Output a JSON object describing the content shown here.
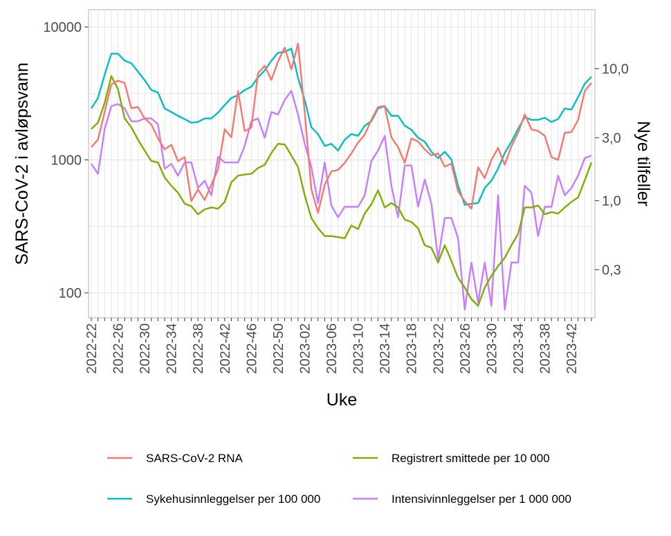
{
  "chart_data": {
    "type": "line",
    "xlabel": "Uke",
    "ylabel_left": "SARS-CoV-2 i avløpsvann",
    "ylabel_right": "Nye tilfeller",
    "y_scale": "log",
    "ylim_left": [
      65,
      13500
    ],
    "ylim_right": [
      0.13,
      28
    ],
    "yticks_left": [
      {
        "v": 100,
        "label": "100"
      },
      {
        "v": 1000,
        "label": "1000"
      },
      {
        "v": 10000,
        "label": "10000"
      }
    ],
    "yticks_right": [
      {
        "v": 0.3,
        "label": "0,3"
      },
      {
        "v": 1,
        "label": "1,0"
      },
      {
        "v": 3,
        "label": "3,0"
      },
      {
        "v": 10,
        "label": "10,0"
      }
    ],
    "x_tick_labels": [
      "2022-22",
      "2022-26",
      "2022-30",
      "2022-34",
      "2022-38",
      "2022-42",
      "2022-46",
      "2022-50",
      "2023-02",
      "2023-06",
      "2023-10",
      "2023-14",
      "2023-18",
      "2023-22",
      "2023-26",
      "2023-30",
      "2023-34",
      "2023-38",
      "2023-42"
    ],
    "n_weeks": 76,
    "grid": true,
    "legend_position": "bottom",
    "series": [
      {
        "name": "SARS-CoV-2 RNA",
        "axis": "left",
        "color": "#F8766D",
        "values": [
          1250,
          1420,
          2300,
          3700,
          3950,
          3800,
          2450,
          2500,
          2050,
          1850,
          1450,
          1200,
          1300,
          980,
          1050,
          490,
          600,
          500,
          650,
          850,
          1700,
          1480,
          3300,
          1650,
          1750,
          4500,
          5100,
          4000,
          5500,
          7000,
          4800,
          7500,
          2300,
          600,
          400,
          650,
          820,
          840,
          950,
          1120,
          1350,
          1550,
          2000,
          2500,
          2550,
          1480,
          1250,
          950,
          1450,
          1380,
          1200,
          1080,
          1120,
          890,
          940,
          580,
          490,
          430,
          880,
          730,
          1000,
          1230,
          920,
          1270,
          1600,
          2200,
          1700,
          1650,
          1520,
          1050,
          1000,
          1600,
          1620,
          2000,
          3300,
          3800
        ]
      },
      {
        "name": "Sykehusinnleggelser per 100 000",
        "axis": "right",
        "color": "#00BFC4",
        "values": [
          5.0,
          6.0,
          9.0,
          13.0,
          13.0,
          11.5,
          11.0,
          9.5,
          8.2,
          6.9,
          6.6,
          5.0,
          4.7,
          4.4,
          4.15,
          3.9,
          3.95,
          4.2,
          4.2,
          4.65,
          5.3,
          6.0,
          6.3,
          6.9,
          7.3,
          8.6,
          9.7,
          11.5,
          13.2,
          13.4,
          14.2,
          8.5,
          5.8,
          3.6,
          3.2,
          2.6,
          2.7,
          2.4,
          2.9,
          3.2,
          3.1,
          3.7,
          4.0,
          5.0,
          5.2,
          4.4,
          4.4,
          3.7,
          3.45,
          3.0,
          2.8,
          2.35,
          2.1,
          2.35,
          2.05,
          1.3,
          0.93,
          0.95,
          0.96,
          1.25,
          1.42,
          1.75,
          2.3,
          2.8,
          3.5,
          4.3,
          4.1,
          4.1,
          4.25,
          3.95,
          4.15,
          5.0,
          4.9,
          6.1,
          7.7,
          8.7
        ]
      },
      {
        "name": "Registrert smittede per 10 000",
        "axis": "right",
        "color": "#7CAE00",
        "values": [
          3.5,
          3.9,
          5.5,
          8.8,
          7.0,
          4.2,
          3.6,
          2.9,
          2.4,
          2.0,
          1.95,
          1.5,
          1.3,
          1.15,
          0.95,
          0.91,
          0.79,
          0.86,
          0.89,
          0.87,
          0.98,
          1.38,
          1.55,
          1.58,
          1.6,
          1.77,
          1.87,
          2.3,
          2.7,
          2.67,
          2.2,
          1.8,
          1.1,
          0.74,
          0.62,
          0.54,
          0.54,
          0.53,
          0.52,
          0.65,
          0.61,
          0.8,
          0.94,
          1.2,
          0.89,
          0.96,
          0.89,
          0.72,
          0.69,
          0.62,
          0.46,
          0.44,
          0.34,
          0.46,
          0.35,
          0.26,
          0.22,
          0.18,
          0.16,
          0.22,
          0.27,
          0.32,
          0.37,
          0.46,
          0.56,
          0.89,
          0.89,
          0.92,
          0.79,
          0.82,
          0.8,
          0.89,
          0.98,
          1.06,
          1.43,
          1.95
        ]
      },
      {
        "name": "Intensivinnleggelser per 1 000 000",
        "axis": "right",
        "color": "#C77CFF",
        "values": [
          1.9,
          1.6,
          3.5,
          5.2,
          5.4,
          5.0,
          4.0,
          4.0,
          4.2,
          4.2,
          3.8,
          1.75,
          1.9,
          1.55,
          1.95,
          1.95,
          1.25,
          1.42,
          1.1,
          2.15,
          1.95,
          1.95,
          1.95,
          2.6,
          4.0,
          4.2,
          3.0,
          4.7,
          4.5,
          5.8,
          6.8,
          4.5,
          2.7,
          1.8,
          0.96,
          1.95,
          0.92,
          0.75,
          0.9,
          0.9,
          0.9,
          1.1,
          2.0,
          2.4,
          3.1,
          1.3,
          0.75,
          1.85,
          1.85,
          0.9,
          1.45,
          0.95,
          0.36,
          0.74,
          0.74,
          0.52,
          0.15,
          0.34,
          0.17,
          0.34,
          0.16,
          1.1,
          0.15,
          0.34,
          0.34,
          1.3,
          1.15,
          0.54,
          0.9,
          0.9,
          1.55,
          1.1,
          1.25,
          1.55,
          2.1,
          2.2
        ]
      }
    ]
  }
}
